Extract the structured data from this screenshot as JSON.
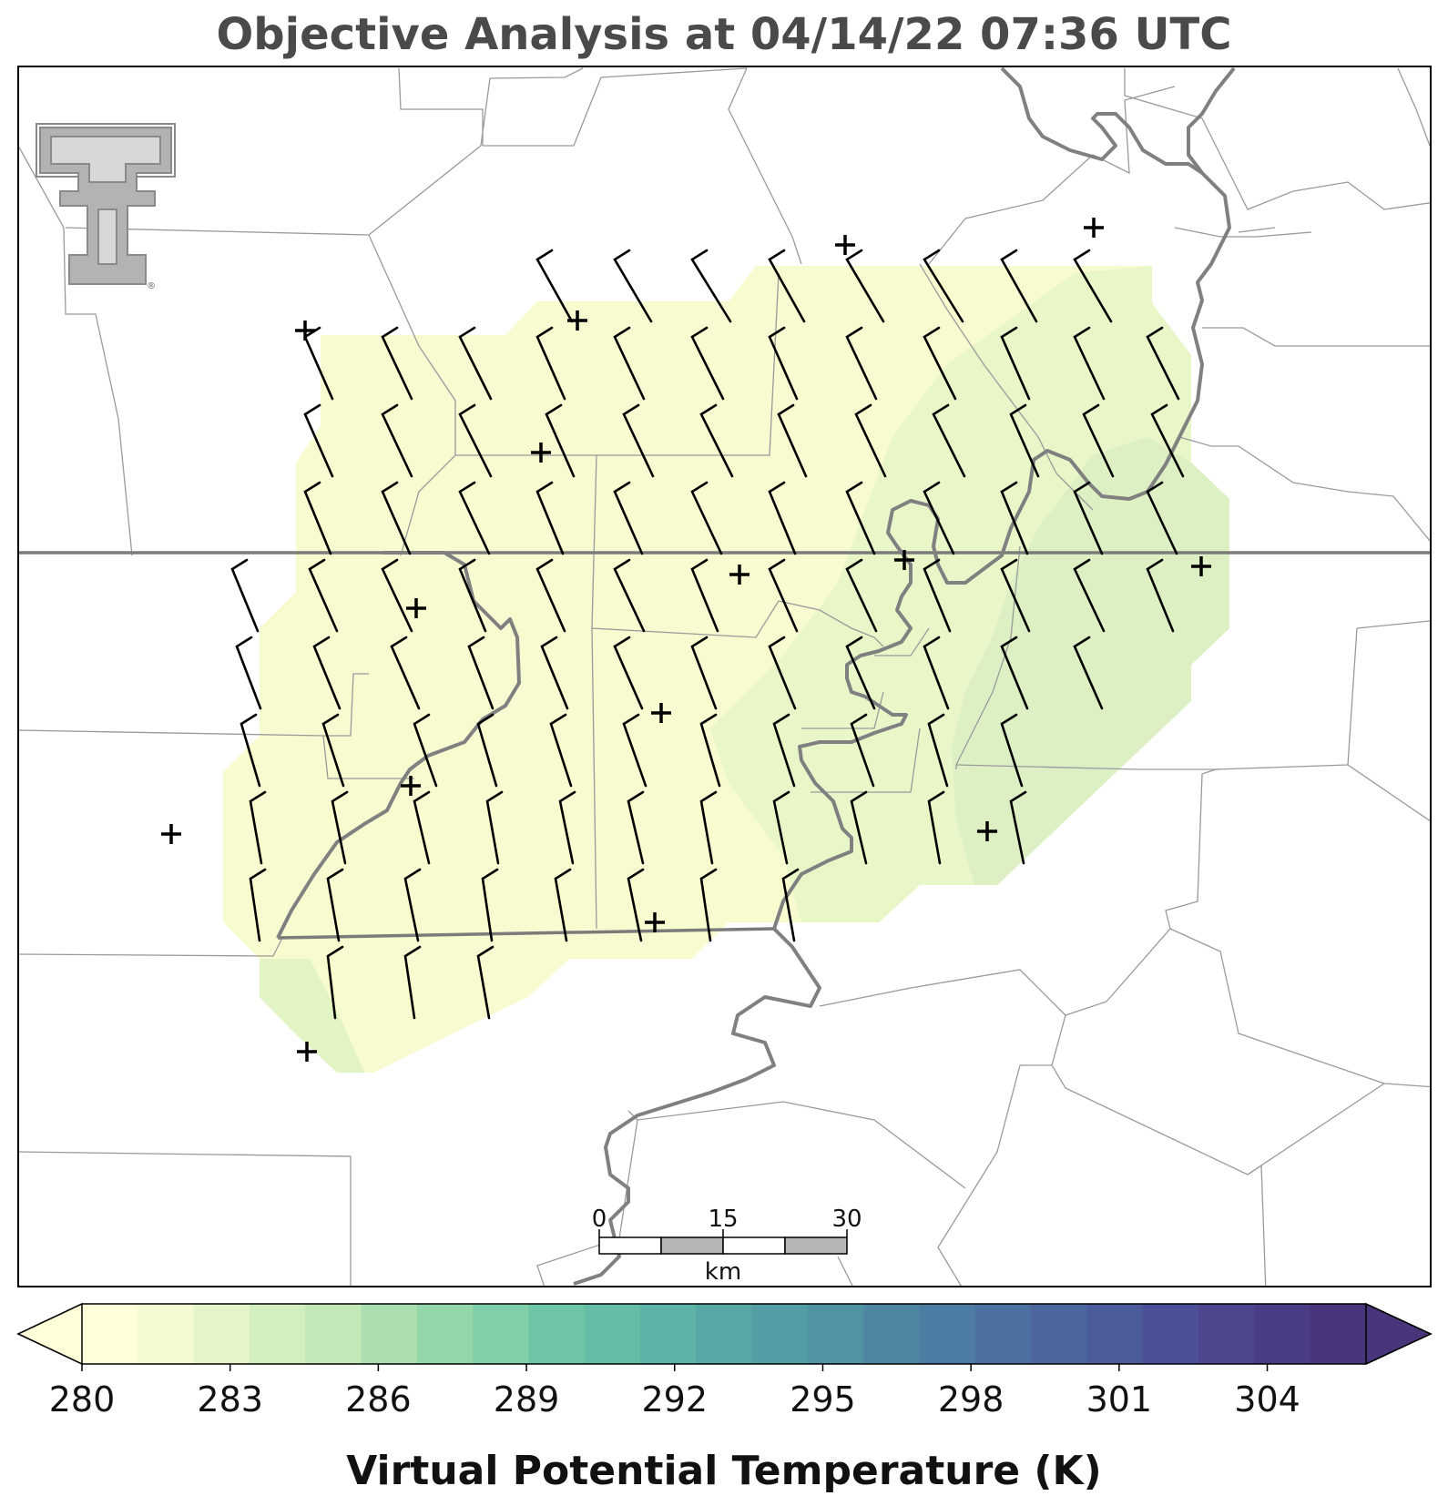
{
  "title": "Objective Analysis at 04/14/22 07:36 UTC",
  "colorbar": {
    "label": "Virtual Potential Temperature (K)",
    "min": 280,
    "max": 306,
    "ticks": [
      "280",
      "283",
      "286",
      "289",
      "292",
      "295",
      "298",
      "301",
      "304"
    ],
    "colors": [
      "#ffffd9",
      "#f4fad2",
      "#e6f5c9",
      "#d4efbf",
      "#c1e8b6",
      "#abdfb0",
      "#94d7aa",
      "#80cfa8",
      "#6fc6a7",
      "#64bda7",
      "#5cb3a6",
      "#57a8a5",
      "#539da5",
      "#5192a4",
      "#4f87a3",
      "#4d7ca2",
      "#4c71a0",
      "#4c669e",
      "#4c5b9b",
      "#4c5096",
      "#4b468e",
      "#4a3d85",
      "#48357b"
    ]
  },
  "scale_bar": {
    "labels": [
      "0",
      "15",
      "30"
    ],
    "unit": "km"
  },
  "logo": {
    "text": "TT"
  },
  "field": {
    "bands": [
      {
        "level": 281,
        "color": "#f7fbcf"
      },
      {
        "level": 282,
        "color": "#e8f6c8"
      },
      {
        "level": 283,
        "color": "#ddf1c2"
      }
    ]
  },
  "stations": [
    [
      335,
      363
    ],
    [
      634,
      352
    ],
    [
      928,
      269
    ],
    [
      1201,
      250
    ],
    [
      594,
      497
    ],
    [
      457,
      668
    ],
    [
      812,
      631
    ],
    [
      993,
      615
    ],
    [
      1319,
      622
    ],
    [
      726,
      783
    ],
    [
      451,
      863
    ],
    [
      188,
      916
    ],
    [
      1084,
      913
    ],
    [
      719,
      1013
    ],
    [
      337,
      1155
    ]
  ]
}
